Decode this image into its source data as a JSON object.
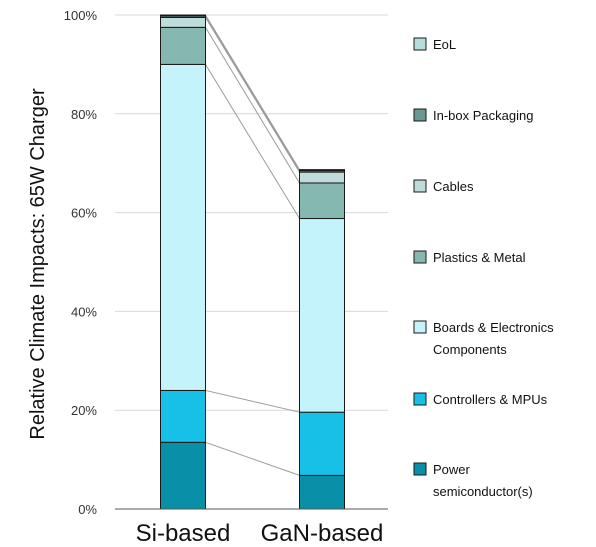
{
  "chart_data": {
    "type": "bar",
    "stacked": true,
    "title": "",
    "xlabel": "",
    "ylabel": "Relative Climate Impacts: 65W Charger",
    "ylim": [
      0,
      100
    ],
    "yticks": [
      "0%",
      "20%",
      "40%",
      "60%",
      "80%",
      "100%"
    ],
    "grid": true,
    "legend_position": "right",
    "categories": [
      "Si-based",
      "GaN-based"
    ],
    "series": [
      {
        "name": "Power semiconductor(s)",
        "legend_lines": [
          "Power",
          "semiconductor(s)"
        ],
        "color": "#0a8fa8",
        "values": [
          13.5,
          6.8
        ]
      },
      {
        "name": "Controllers & MPUs",
        "legend_lines": [
          "Controllers & MPUs"
        ],
        "color": "#16c0e6",
        "values": [
          10.5,
          12.8
        ]
      },
      {
        "name": "Boards & Electronics Components",
        "legend_lines": [
          "Boards & Electronics",
          "Components"
        ],
        "color": "#c4f3fc",
        "values": [
          66.0,
          39.2
        ]
      },
      {
        "name": "Plastics & Metal",
        "legend_lines": [
          "Plastics & Metal"
        ],
        "color": "#86b8b2",
        "values": [
          7.5,
          7.2
        ]
      },
      {
        "name": "Cables",
        "legend_lines": [
          "Cables"
        ],
        "color": "#bfdcdb",
        "values": [
          2.0,
          2.2
        ]
      },
      {
        "name": "In-box Packaging",
        "legend_lines": [
          "In-box Packaging"
        ],
        "color": "#6a9893",
        "values": [
          0.3,
          0.3
        ]
      },
      {
        "name": "EoL",
        "legend_lines": [
          "EoL"
        ],
        "color": "#b7dcdc",
        "values": [
          0.2,
          0.2
        ]
      }
    ],
    "legend_order": [
      "EoL",
      "In-box Packaging",
      "Cables",
      "Plastics & Metal",
      "Boards & Electronics Components",
      "Controllers & MPUs",
      "Power semiconductor(s)"
    ],
    "connector_lines": true
  }
}
